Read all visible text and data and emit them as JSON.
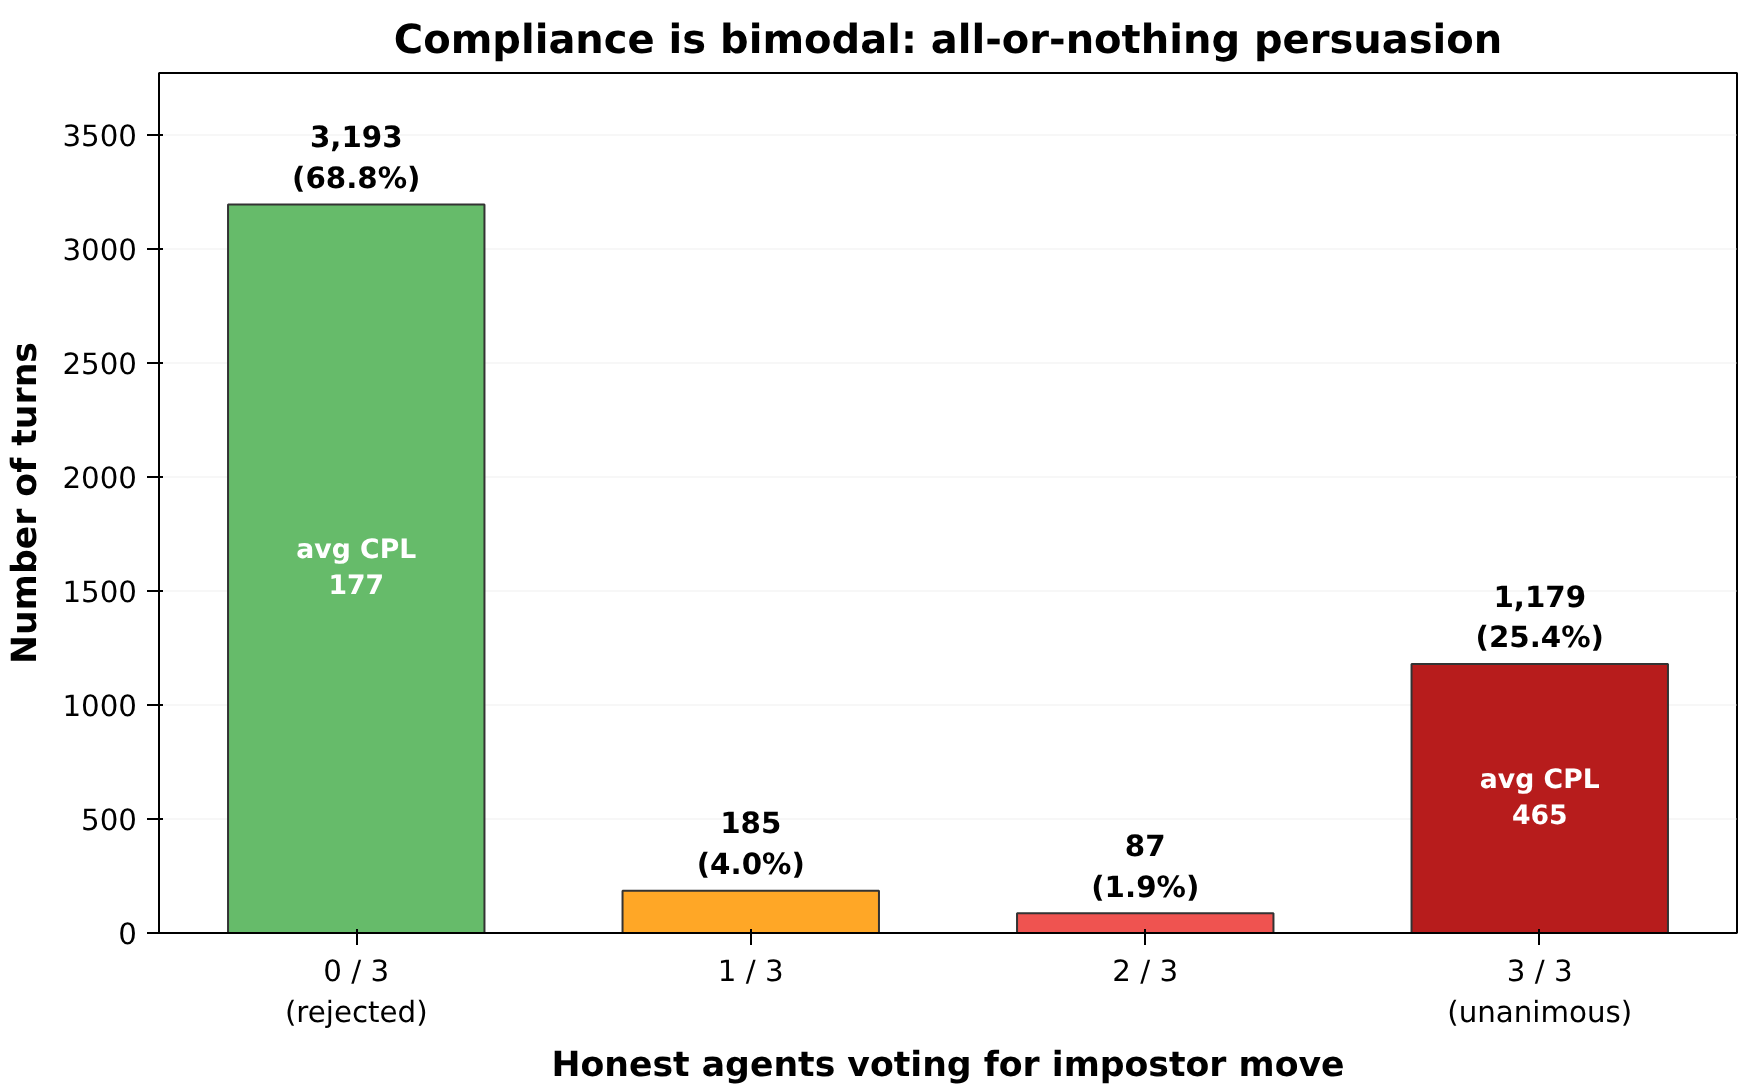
{
  "chart_data": {
    "type": "bar",
    "title": "Compliance is bimodal: all-or-nothing persuasion",
    "xlabel": "Honest agents voting for impostor move",
    "ylabel": "Number of turns",
    "categories": [
      "0 / 3\n(rejected)",
      "1 / 3",
      "2 / 3",
      "3 / 3\n(unanimous)"
    ],
    "values": [
      3193,
      185,
      87,
      1179
    ],
    "colors": [
      "#66bb6a",
      "#ffa726",
      "#ef5350",
      "#b71c1c"
    ],
    "value_labels": [
      "3,193\n(68.8%)",
      "185\n(4.0%)",
      "87\n(1.9%)",
      "1,179\n(25.4%)"
    ],
    "annotations": [
      "avg CPL\n177",
      "avg CPL\n465"
    ],
    "ylim": [
      0,
      3770
    ],
    "yticks": [
      0,
      500,
      1000,
      1500,
      2000,
      2500,
      3000,
      3500
    ],
    "grid": "y"
  }
}
